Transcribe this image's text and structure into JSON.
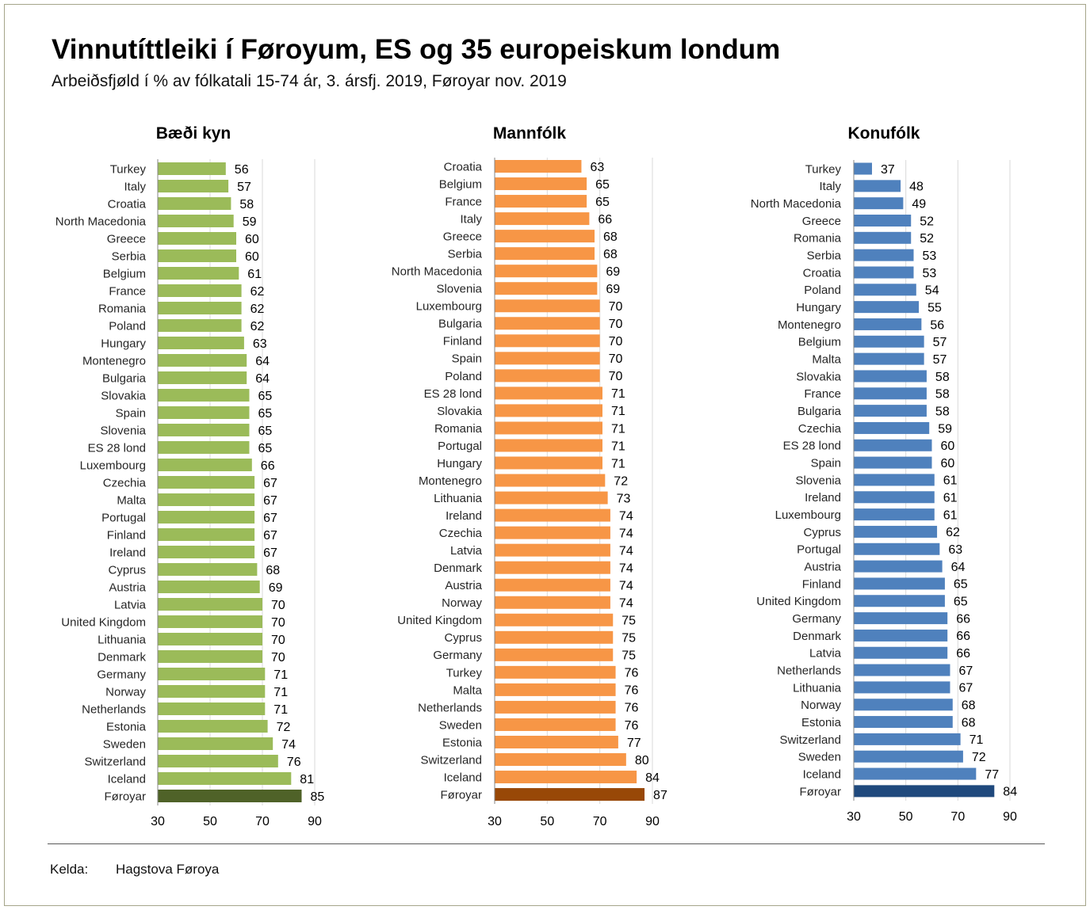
{
  "title": "Vinnutíttleiki í Føroyum, ES og 35 europeiskum londum",
  "subtitle": "Arbeiðsfjøld í % av fólkatali 15-74 ár, 3. ársfj. 2019, Føroyar nov. 2019",
  "source": {
    "label": "Kelda:",
    "value": "Hagstova Føroya"
  },
  "chart_data": [
    {
      "type": "bar",
      "title": "Bæði kyn",
      "categories": [
        "Turkey",
        "Italy",
        "Croatia",
        "North Macedonia",
        "Greece",
        "Serbia",
        "Belgium",
        "France",
        "Romania",
        "Poland",
        "Hungary",
        "Montenegro",
        "Bulgaria",
        "Slovakia",
        "Spain",
        "Slovenia",
        "ES 28 lond",
        "Luxembourg",
        "Czechia",
        "Malta",
        "Portugal",
        "Finland",
        "Ireland",
        "Cyprus",
        "Austria",
        "Latvia",
        "United Kingdom",
        "Lithuania",
        "Denmark",
        "Germany",
        "Norway",
        "Netherlands",
        "Estonia",
        "Sweden",
        "Switzerland",
        "Iceland",
        "Føroyar"
      ],
      "values": [
        56,
        57,
        58,
        59,
        60,
        60,
        61,
        62,
        62,
        62,
        63,
        64,
        64,
        65,
        65,
        65,
        65,
        66,
        67,
        67,
        67,
        67,
        67,
        68,
        69,
        70,
        70,
        70,
        70,
        71,
        71,
        71,
        72,
        74,
        76,
        81,
        85
      ],
      "xlim": [
        30,
        90
      ],
      "xticks": [
        30,
        50,
        70,
        90
      ],
      "bar_color": "#9bbb59",
      "highlight_color": "#4f6228"
    },
    {
      "type": "bar",
      "title": "Mannfólk",
      "categories": [
        "Croatia",
        "Belgium",
        "France",
        "Italy",
        "Greece",
        "Serbia",
        "North Macedonia",
        "Slovenia",
        "Luxembourg",
        "Bulgaria",
        "Finland",
        "Spain",
        "Poland",
        "ES 28 lond",
        "Slovakia",
        "Romania",
        "Portugal",
        "Hungary",
        "Montenegro",
        "Lithuania",
        "Ireland",
        "Czechia",
        "Latvia",
        "Denmark",
        "Austria",
        "Norway",
        "United Kingdom",
        "Cyprus",
        "Germany",
        "Turkey",
        "Malta",
        "Netherlands",
        "Sweden",
        "Estonia",
        "Switzerland",
        "Iceland",
        "Føroyar"
      ],
      "values": [
        63,
        65,
        65,
        66,
        68,
        68,
        69,
        69,
        70,
        70,
        70,
        70,
        70,
        71,
        71,
        71,
        71,
        71,
        72,
        73,
        74,
        74,
        74,
        74,
        74,
        74,
        75,
        75,
        75,
        76,
        76,
        76,
        76,
        77,
        80,
        84,
        87
      ],
      "xlim": [
        30,
        90
      ],
      "xticks": [
        30,
        50,
        70,
        90
      ],
      "bar_color": "#f79646",
      "highlight_color": "#984807"
    },
    {
      "type": "bar",
      "title": "Konufólk",
      "categories": [
        "Turkey",
        "Italy",
        "North Macedonia",
        "Greece",
        "Romania",
        "Serbia",
        "Croatia",
        "Poland",
        "Hungary",
        "Montenegro",
        "Belgium",
        "Malta",
        "Slovakia",
        "France",
        "Bulgaria",
        "Czechia",
        "ES 28 lond",
        "Spain",
        "Slovenia",
        "Ireland",
        "Luxembourg",
        "Cyprus",
        "Portugal",
        "Austria",
        "Finland",
        "United Kingdom",
        "Germany",
        "Denmark",
        "Latvia",
        "Netherlands",
        "Lithuania",
        "Norway",
        "Estonia",
        "Switzerland",
        "Sweden",
        "Iceland",
        "Føroyar"
      ],
      "values": [
        37,
        48,
        49,
        52,
        52,
        53,
        53,
        54,
        55,
        56,
        57,
        57,
        58,
        58,
        58,
        59,
        60,
        60,
        61,
        61,
        61,
        62,
        63,
        64,
        65,
        65,
        66,
        66,
        66,
        67,
        67,
        68,
        68,
        71,
        72,
        77,
        84
      ],
      "xlim": [
        30,
        90
      ],
      "xticks": [
        30,
        50,
        70,
        90
      ],
      "bar_color": "#4f81bd",
      "highlight_color": "#1f497d"
    }
  ]
}
